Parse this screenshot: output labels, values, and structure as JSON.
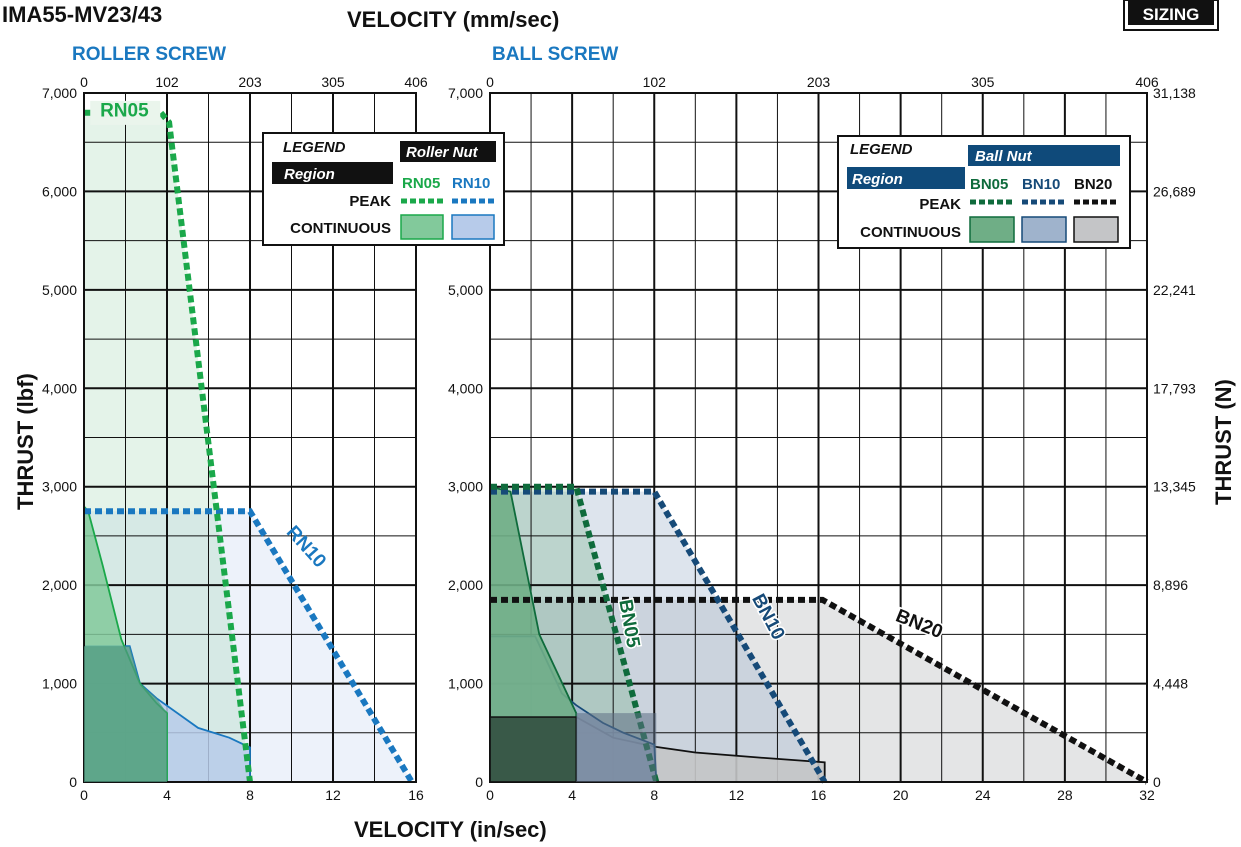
{
  "header": {
    "model": "IMA55-MV23/43",
    "badge": "SIZING",
    "top_axis_title": "VELOCITY (mm/sec)",
    "bottom_axis_title": "VELOCITY (in/sec)",
    "left_axis_title": "THRUST (lbf)",
    "right_axis_title": "THRUST (N)"
  },
  "colors": {
    "rn05_peak": "#1aa84a",
    "rn10_peak": "#1a78c0",
    "rn05_fill": "#82c99b",
    "rn10_fill": "#b7cbea",
    "bn05_peak": "#0f6b3c",
    "bn10_peak": "#164a78",
    "bn20_peak": "#111111",
    "bn05_fill": "#6fae86",
    "bn10_fill": "#9fb3cc",
    "bn20_fill": "#c4c5c7",
    "roller_title": "#1a78c0",
    "ball_title": "#1a78c0",
    "ball_legend_bg": "#0f4a7a"
  },
  "chart_data": [
    {
      "type": "area",
      "title": "ROLLER SCREW",
      "xlabel": "VELOCITY (in/sec)",
      "ylabel": "THRUST (lbf)",
      "x2label": "VELOCITY (mm/sec)",
      "xlim": [
        0,
        16
      ],
      "ylim": [
        0,
        7000
      ],
      "grid": true,
      "legend_position": "top-right",
      "x_ticks": [
        "0",
        "4",
        "8",
        "12",
        "16"
      ],
      "x2_ticks": [
        "0",
        "102",
        "203",
        "305",
        "406"
      ],
      "y_ticks": [
        "0",
        "1,000",
        "2,000",
        "3,000",
        "4,000",
        "5,000",
        "6,000",
        "7,000"
      ],
      "legend": {
        "title": "LEGEND",
        "region": "Region",
        "nut": "Roller Nut",
        "series_labels": [
          "RN05",
          "RN10"
        ],
        "peak": "PEAK",
        "continuous": "CONTINUOUS"
      },
      "series": [
        {
          "name": "RN05",
          "peak": {
            "x": [
              0,
              3.7,
              4.1,
              8.0,
              8.0
            ],
            "y": [
              6800,
              6800,
              6700,
              0,
              0
            ]
          },
          "continuous": {
            "x": [
              0,
              0,
              0.2,
              0.9,
              1.8,
              2.7,
              3.5,
              4.0,
              4.0
            ],
            "y": [
              0,
              2800,
              2750,
              2200,
              1450,
              1000,
              800,
              700,
              0
            ]
          }
        },
        {
          "name": "RN10",
          "peak": {
            "x": [
              0,
              8.0,
              15.8
            ],
            "y": [
              2750,
              2750,
              0
            ]
          },
          "continuous": {
            "x": [
              0,
              0,
              2.2,
              2.7,
              3.5,
              4.5,
              5.5,
              7.0,
              8.0,
              8.0
            ],
            "y": [
              0,
              1380,
              1380,
              1000,
              850,
              700,
              550,
              450,
              350,
              0
            ]
          }
        }
      ],
      "labels": [
        "RN05",
        "RN10"
      ]
    },
    {
      "type": "area",
      "title": "BALL SCREW",
      "xlabel": "VELOCITY (in/sec)",
      "ylabel": "THRUST (lbf)",
      "y2label": "THRUST (N)",
      "x2label": "VELOCITY (mm/sec)",
      "xlim": [
        0,
        32
      ],
      "ylim": [
        0,
        7000
      ],
      "grid": true,
      "legend_position": "top-right",
      "x_ticks": [
        "0",
        "4",
        "8",
        "12",
        "16",
        "20",
        "24",
        "28",
        "32"
      ],
      "x2_ticks": [
        "0",
        "102",
        "203",
        "305",
        "406"
      ],
      "y_ticks": [
        "0",
        "1,000",
        "2,000",
        "3,000",
        "4,000",
        "5,000",
        "6,000",
        "7,000"
      ],
      "y2_ticks": [
        "0",
        "4,448",
        "8,896",
        "13,345",
        "17,793",
        "22,241",
        "26,689",
        "31,138"
      ],
      "legend": {
        "title": "LEGEND",
        "region": "Region",
        "nut": "Ball Nut",
        "series_labels": [
          "BN05",
          "BN10",
          "BN20"
        ],
        "peak": "PEAK",
        "continuous": "CONTINUOUS"
      },
      "series": [
        {
          "name": "BN05",
          "peak": {
            "x": [
              0,
              4.2,
              8.1
            ],
            "y": [
              3000,
              3000,
              0
            ]
          },
          "continuous": {
            "x": [
              0,
              0,
              1.0,
              2.4,
              4.2,
              4.2
            ],
            "y": [
              0,
              3000,
              2950,
              1500,
              700,
              0
            ]
          }
        },
        {
          "name": "BN10",
          "peak": {
            "x": [
              0,
              8.0,
              16.3
            ],
            "y": [
              2950,
              2950,
              0
            ]
          },
          "continuous": {
            "x": [
              0,
              0,
              2.2,
              3.5,
              4.2,
              5.5,
              6.5,
              8.0,
              8.1
            ],
            "y": [
              0,
              1480,
              1480,
              900,
              780,
              600,
              500,
              380,
              0
            ]
          }
        },
        {
          "name": "BN20",
          "peak": {
            "x": [
              0,
              16.2,
              32
            ],
            "y": [
              1850,
              1850,
              0
            ]
          },
          "continuous": {
            "x": [
              0,
              0,
              4.2,
              6.0,
              8.0,
              10.0,
              13.0,
              16.3,
              16.3
            ],
            "y": [
              0,
              660,
              660,
              450,
              360,
              300,
              250,
              200,
              0
            ]
          }
        }
      ],
      "labels": [
        "BN05",
        "BN10",
        "BN20"
      ]
    }
  ]
}
